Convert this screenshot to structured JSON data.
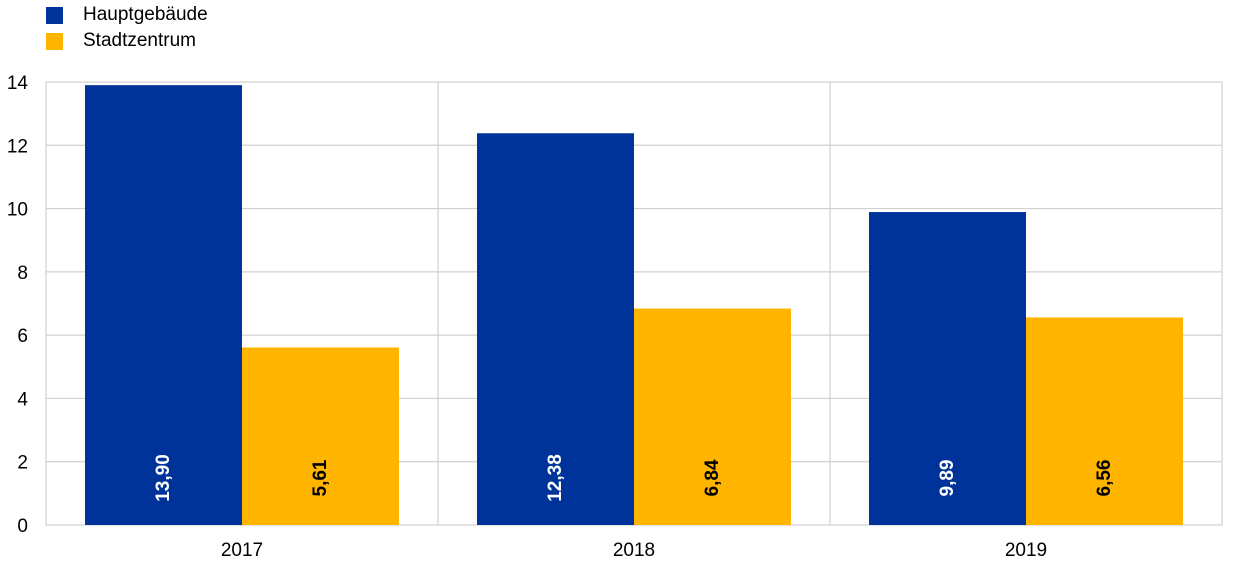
{
  "chart_data": {
    "type": "bar",
    "categories": [
      "2017",
      "2018",
      "2019"
    ],
    "series": [
      {
        "name": "Hauptgebäude",
        "values": [
          13.9,
          12.38,
          9.89
        ],
        "labels": [
          "13,90",
          "12,38",
          "9,89"
        ],
        "color": "#003399",
        "label_color": "#ffffff"
      },
      {
        "name": "Stadtzentrum",
        "values": [
          5.61,
          6.84,
          6.56
        ],
        "labels": [
          "5,61",
          "6,84",
          "6,56"
        ],
        "color": "#FFB400",
        "label_color": "#000000"
      }
    ],
    "yticks": [
      "0",
      "2",
      "4",
      "6",
      "8",
      "10",
      "12",
      "14"
    ],
    "ylim": [
      0,
      14
    ],
    "grid": true,
    "legend_position": "top-left"
  }
}
